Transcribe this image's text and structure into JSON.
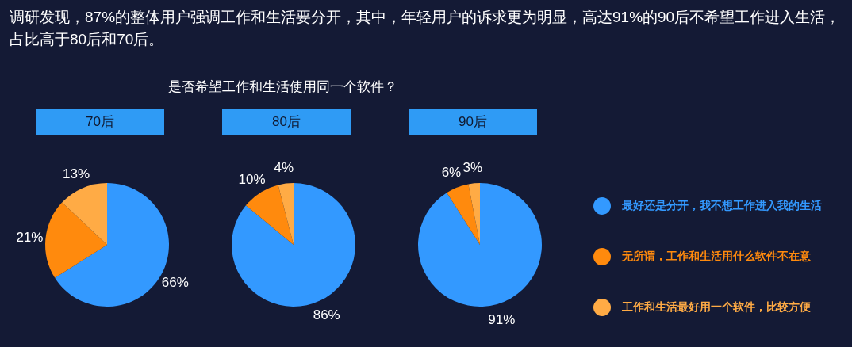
{
  "chart_data": [
    {
      "type": "pie",
      "title": "70后",
      "annotations": [
        "调研发现，87%的整体用户强调工作和生活要分开，其中，年轻用户的诉求更为明显，高达91%的90后不希望工作进入生活，占比高于80后和70后。",
        "是否希望工作和生活使用同一个软件？"
      ],
      "categories": [
        null,
        null,
        null
      ],
      "values": [
        66,
        21,
        13
      ],
      "value_labels": [
        "66%",
        "21%",
        "13%"
      ],
      "colors": [
        "#3399ff",
        "#ff8a0d",
        "#ffab45"
      ],
      "legend": false
    },
    {
      "type": "pie",
      "title": "80后",
      "categories": [
        null,
        null,
        null
      ],
      "values": [
        86,
        10,
        4
      ],
      "value_labels": [
        "86%",
        "10%",
        "4%"
      ],
      "colors": [
        "#3399ff",
        "#ff8a0d",
        "#ffab45"
      ],
      "legend": false
    },
    {
      "type": "pie",
      "title": "90后",
      "categories": [
        "最好还是分开，我不想工作进入我的生活",
        "无所谓，工作和生活用什么软件不在意",
        "工作和生活最好用一个软件，比较方便"
      ],
      "values": [
        91,
        6,
        3
      ],
      "value_labels": [
        "91%",
        "6%",
        "3%"
      ],
      "colors": [
        "#3399ff",
        "#ff8a0d",
        "#ffab45"
      ],
      "legend": "right"
    }
  ]
}
